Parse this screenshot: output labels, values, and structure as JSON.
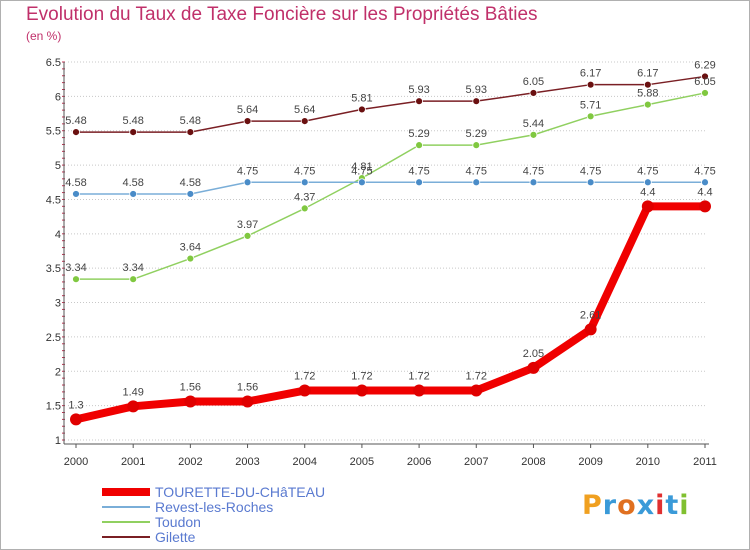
{
  "title": "Evolution du Taux de Taxe Foncière sur les Propriétés Bâties",
  "unit": "(en %)",
  "logo": "Proxiti",
  "colors": {
    "title": "#c0306a",
    "gridline": "#c8c8c8",
    "axis": "#555555",
    "minor_tick": "#c03050"
  },
  "chart_data": {
    "type": "line",
    "title": "Evolution du Taux de Taxe Foncière sur les Propriétés Bâties",
    "ylabel": "(en %)",
    "xlabel": "",
    "x": [
      "2000",
      "2001",
      "2002",
      "2003",
      "2004",
      "2005",
      "2006",
      "2007",
      "2008",
      "2009",
      "2010",
      "2011"
    ],
    "ylim": [
      1,
      6.5
    ],
    "yticks": [
      "1",
      "1.5",
      "2",
      "2.5",
      "3",
      "3.5",
      "4",
      "4.5",
      "5",
      "5.5",
      "6",
      "6.5"
    ],
    "grid": "horizontal",
    "legend_position": "bottom-left",
    "series": [
      {
        "name": "Gilette",
        "color": "#7a1f24",
        "marker": "#6a1010",
        "style": "thin",
        "values": [
          5.48,
          5.48,
          5.48,
          5.64,
          5.64,
          5.81,
          5.93,
          5.93,
          6.05,
          6.17,
          6.17,
          6.29
        ],
        "labels": [
          "5.48",
          "5.48",
          "5.48",
          "5.64",
          "5.64",
          "5.81",
          "5.93",
          "5.93",
          "6.05",
          "6.17",
          "6.17",
          "6.29"
        ]
      },
      {
        "name": "Toudon",
        "color": "#90d060",
        "marker": "#80c840",
        "style": "thin",
        "values": [
          3.34,
          3.34,
          3.64,
          3.97,
          4.37,
          4.81,
          5.29,
          5.29,
          5.44,
          5.71,
          5.88,
          6.05
        ],
        "labels": [
          "3.34",
          "3.34",
          "3.64",
          "3.97",
          "4.37",
          "4.81",
          "5.29",
          "5.29",
          "5.44",
          "5.71",
          "5.88",
          "6.05"
        ]
      },
      {
        "name": "Revest-les-Roches",
        "color": "#7aaed8",
        "marker": "#4a8cc8",
        "style": "thin",
        "values": [
          4.58,
          4.58,
          4.58,
          4.75,
          4.75,
          4.75,
          4.75,
          4.75,
          4.75,
          4.75,
          4.75,
          4.75
        ],
        "labels": [
          "4.58",
          "4.58",
          "4.58",
          "4.75",
          "4.75",
          "4.75",
          "4.75",
          "4.75",
          "4.75",
          "4.75",
          "4.75",
          "4.75"
        ]
      },
      {
        "name": "TOURETTE-DU-CHâTEAU",
        "color": "#f00000",
        "marker": "#e00000",
        "style": "thick",
        "values": [
          1.3,
          1.49,
          1.56,
          1.56,
          1.72,
          1.72,
          1.72,
          1.72,
          2.05,
          2.61,
          4.4,
          4.4
        ],
        "labels": [
          "1.3",
          "1.49",
          "1.56",
          "1.56",
          "1.72",
          "1.72",
          "1.72",
          "1.72",
          "2.05",
          "2.61",
          "4.4",
          "4.4"
        ]
      }
    ],
    "legend": [
      {
        "name": "TOURETTE-DU-CHâTEAU",
        "color": "#f00000",
        "text_color": "#5a7ad0",
        "style": "thick"
      },
      {
        "name": "Revest-les-Roches",
        "color": "#7aaed8",
        "text_color": "#5a7ad0",
        "style": "thin"
      },
      {
        "name": "Toudon",
        "color": "#90d060",
        "text_color": "#5a7ad0",
        "style": "thin"
      },
      {
        "name": "Gilette",
        "color": "#7a1f24",
        "text_color": "#5a7ad0",
        "style": "thin"
      }
    ]
  }
}
